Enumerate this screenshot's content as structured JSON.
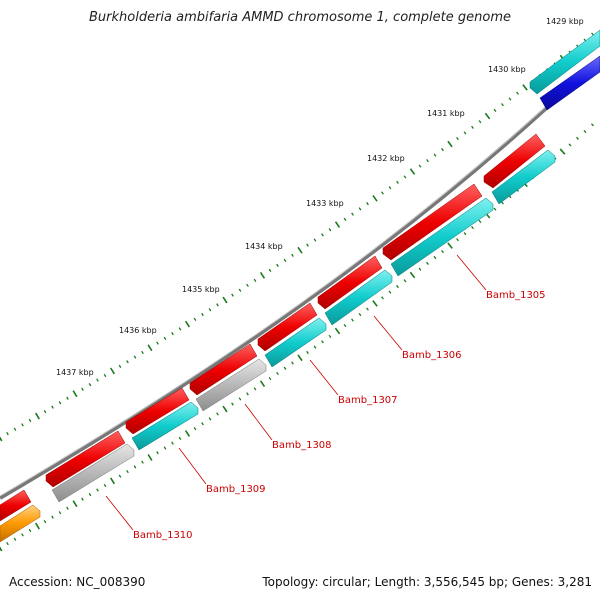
{
  "title": "Burkholderia ambifaria AMMD chromosome 1, complete genome",
  "footer": {
    "accession": "Accession: NC_008390",
    "summary": "Topology: circular; Length: 3,556,545 bp; Genes: 3,281"
  },
  "ruler": [
    {
      "label": "1429 kbp"
    },
    {
      "label": "1430 kbp"
    },
    {
      "label": "1431 kbp"
    },
    {
      "label": "1432 kbp"
    },
    {
      "label": "1433 kbp"
    },
    {
      "label": "1434 kbp"
    },
    {
      "label": "1435 kbp"
    },
    {
      "label": "1436 kbp"
    },
    {
      "label": "1437 kbp"
    }
  ],
  "gene_labels": [
    {
      "name": "Bamb_1305"
    },
    {
      "name": "Bamb_1306"
    },
    {
      "name": "Bamb_1307"
    },
    {
      "name": "Bamb_1308"
    },
    {
      "name": "Bamb_1309"
    },
    {
      "name": "Bamb_1310"
    }
  ],
  "colors": {
    "forward_cds": "#ee0000",
    "reverse_cds": "#11cccc",
    "pseudo_or_other": "#b8b8b8",
    "blue_feature": "#1111dd",
    "orange_feature": "#ff9900",
    "backbone": "#808080",
    "ticks": "#1a7a1a",
    "label_text": "#cc0000"
  }
}
